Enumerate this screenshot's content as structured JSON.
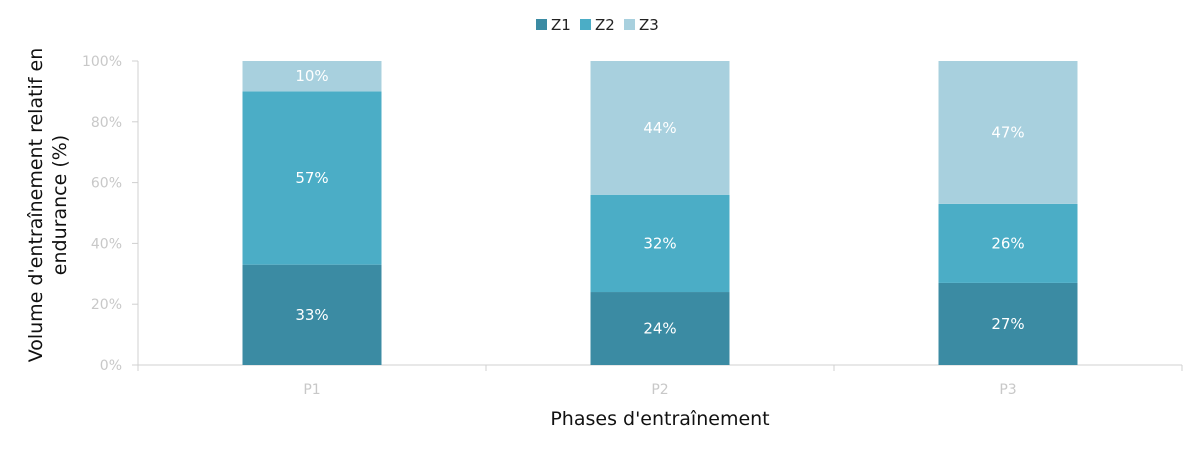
{
  "chart_data": {
    "type": "bar",
    "stacked": true,
    "categories": [
      "P1",
      "P2",
      "P3"
    ],
    "series": [
      {
        "name": "Z1",
        "values": [
          33,
          24,
          27
        ],
        "labels": [
          "33%",
          "24%",
          "27%"
        ],
        "color": "#3b8ba3"
      },
      {
        "name": "Z2",
        "values": [
          57,
          32,
          26
        ],
        "labels": [
          "57%",
          "32%",
          "26%"
        ],
        "color": "#4badc6"
      },
      {
        "name": "Z3",
        "values": [
          10,
          44,
          47
        ],
        "labels": [
          "10%",
          "44%",
          "47%"
        ],
        "color": "#a8d0de"
      }
    ],
    "xlabel": "Phases d'entraînement",
    "ylabel_lines": [
      "Volume d'entraînement relatif en",
      "endurance (%)"
    ],
    "ylim": [
      0,
      100
    ],
    "yticks": [
      0,
      20,
      40,
      60,
      80,
      100
    ],
    "ytick_labels": [
      "0%",
      "20%",
      "40%",
      "60%",
      "80%",
      "100%"
    ],
    "legend_position": "top-center",
    "grid": false,
    "axis_color": "#d0d0d0",
    "tick_label_color": "#c8c8c8"
  }
}
